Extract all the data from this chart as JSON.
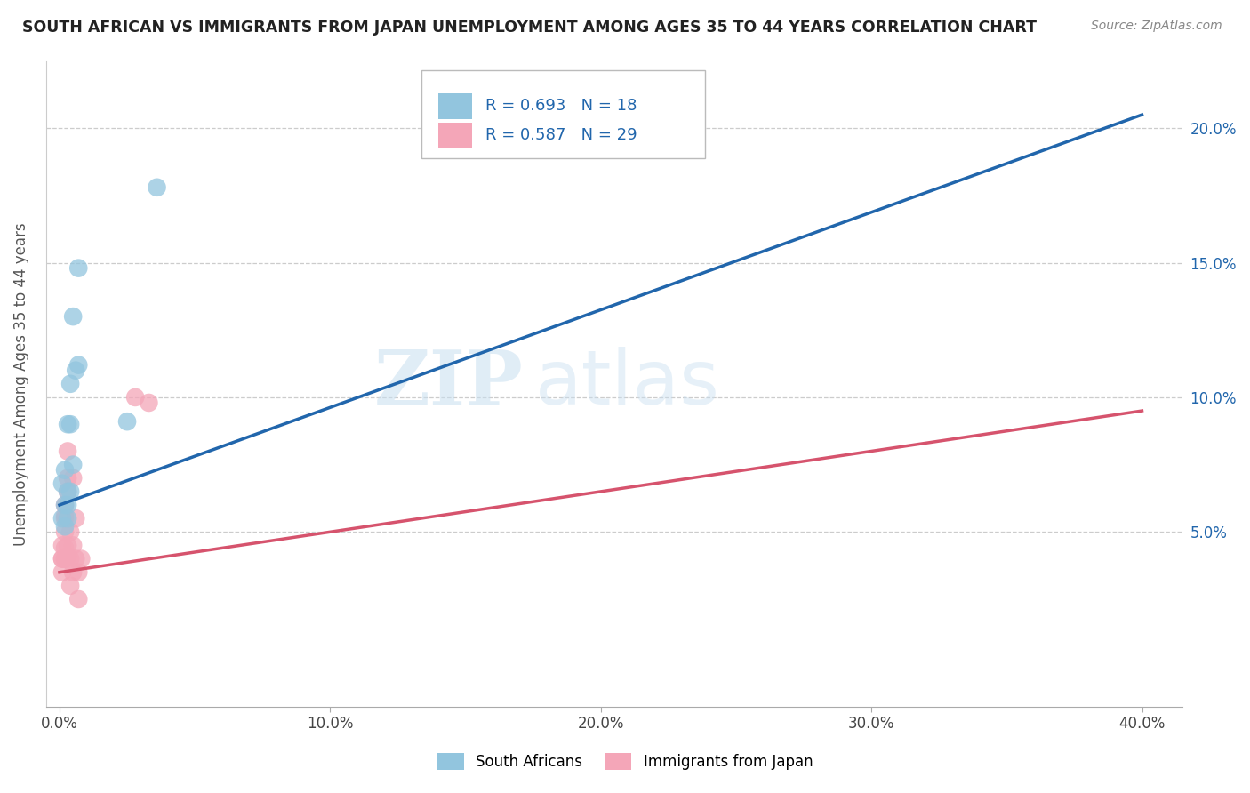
{
  "title": "SOUTH AFRICAN VS IMMIGRANTS FROM JAPAN UNEMPLOYMENT AMONG AGES 35 TO 44 YEARS CORRELATION CHART",
  "source": "Source: ZipAtlas.com",
  "ylabel": "Unemployment Among Ages 35 to 44 years",
  "xlabel_ticks": [
    "0.0%",
    "10.0%",
    "20.0%",
    "30.0%",
    "40.0%"
  ],
  "xlabel_vals": [
    0.0,
    0.1,
    0.2,
    0.3,
    0.4
  ],
  "ylabel_ticks": [
    "5.0%",
    "10.0%",
    "15.0%",
    "20.0%"
  ],
  "ylabel_vals": [
    0.05,
    0.1,
    0.15,
    0.2
  ],
  "xlim": [
    -0.005,
    0.415
  ],
  "ylim": [
    -0.015,
    0.225
  ],
  "blue_color": "#92c5de",
  "pink_color": "#f4a6b8",
  "blue_line_color": "#2166ac",
  "pink_line_color": "#d6536d",
  "watermark_zip": "ZIP",
  "watermark_atlas": "atlas",
  "legend_label_blue": "South Africans",
  "legend_label_pink": "Immigrants from Japan",
  "blue_scatter_x": [
    0.001,
    0.001,
    0.002,
    0.002,
    0.002,
    0.003,
    0.003,
    0.003,
    0.003,
    0.004,
    0.004,
    0.004,
    0.005,
    0.005,
    0.006,
    0.007,
    0.007,
    0.025,
    0.036
  ],
  "blue_scatter_y": [
    0.055,
    0.068,
    0.052,
    0.06,
    0.073,
    0.055,
    0.06,
    0.065,
    0.09,
    0.065,
    0.09,
    0.105,
    0.13,
    0.075,
    0.11,
    0.148,
    0.112,
    0.091,
    0.178
  ],
  "pink_scatter_x": [
    0.001,
    0.001,
    0.001,
    0.001,
    0.002,
    0.002,
    0.002,
    0.002,
    0.002,
    0.002,
    0.002,
    0.003,
    0.003,
    0.003,
    0.003,
    0.003,
    0.004,
    0.004,
    0.004,
    0.005,
    0.005,
    0.005,
    0.006,
    0.006,
    0.007,
    0.007,
    0.008,
    0.028,
    0.033
  ],
  "pink_scatter_y": [
    0.04,
    0.045,
    0.04,
    0.035,
    0.04,
    0.044,
    0.05,
    0.055,
    0.04,
    0.056,
    0.06,
    0.07,
    0.065,
    0.041,
    0.08,
    0.045,
    0.05,
    0.04,
    0.03,
    0.035,
    0.045,
    0.07,
    0.055,
    0.04,
    0.025,
    0.035,
    0.04,
    0.1,
    0.098
  ],
  "blue_line_x": [
    0.0,
    0.4
  ],
  "blue_line_y": [
    0.06,
    0.205
  ],
  "pink_line_x": [
    0.0,
    0.4
  ],
  "pink_line_y": [
    0.035,
    0.095
  ]
}
